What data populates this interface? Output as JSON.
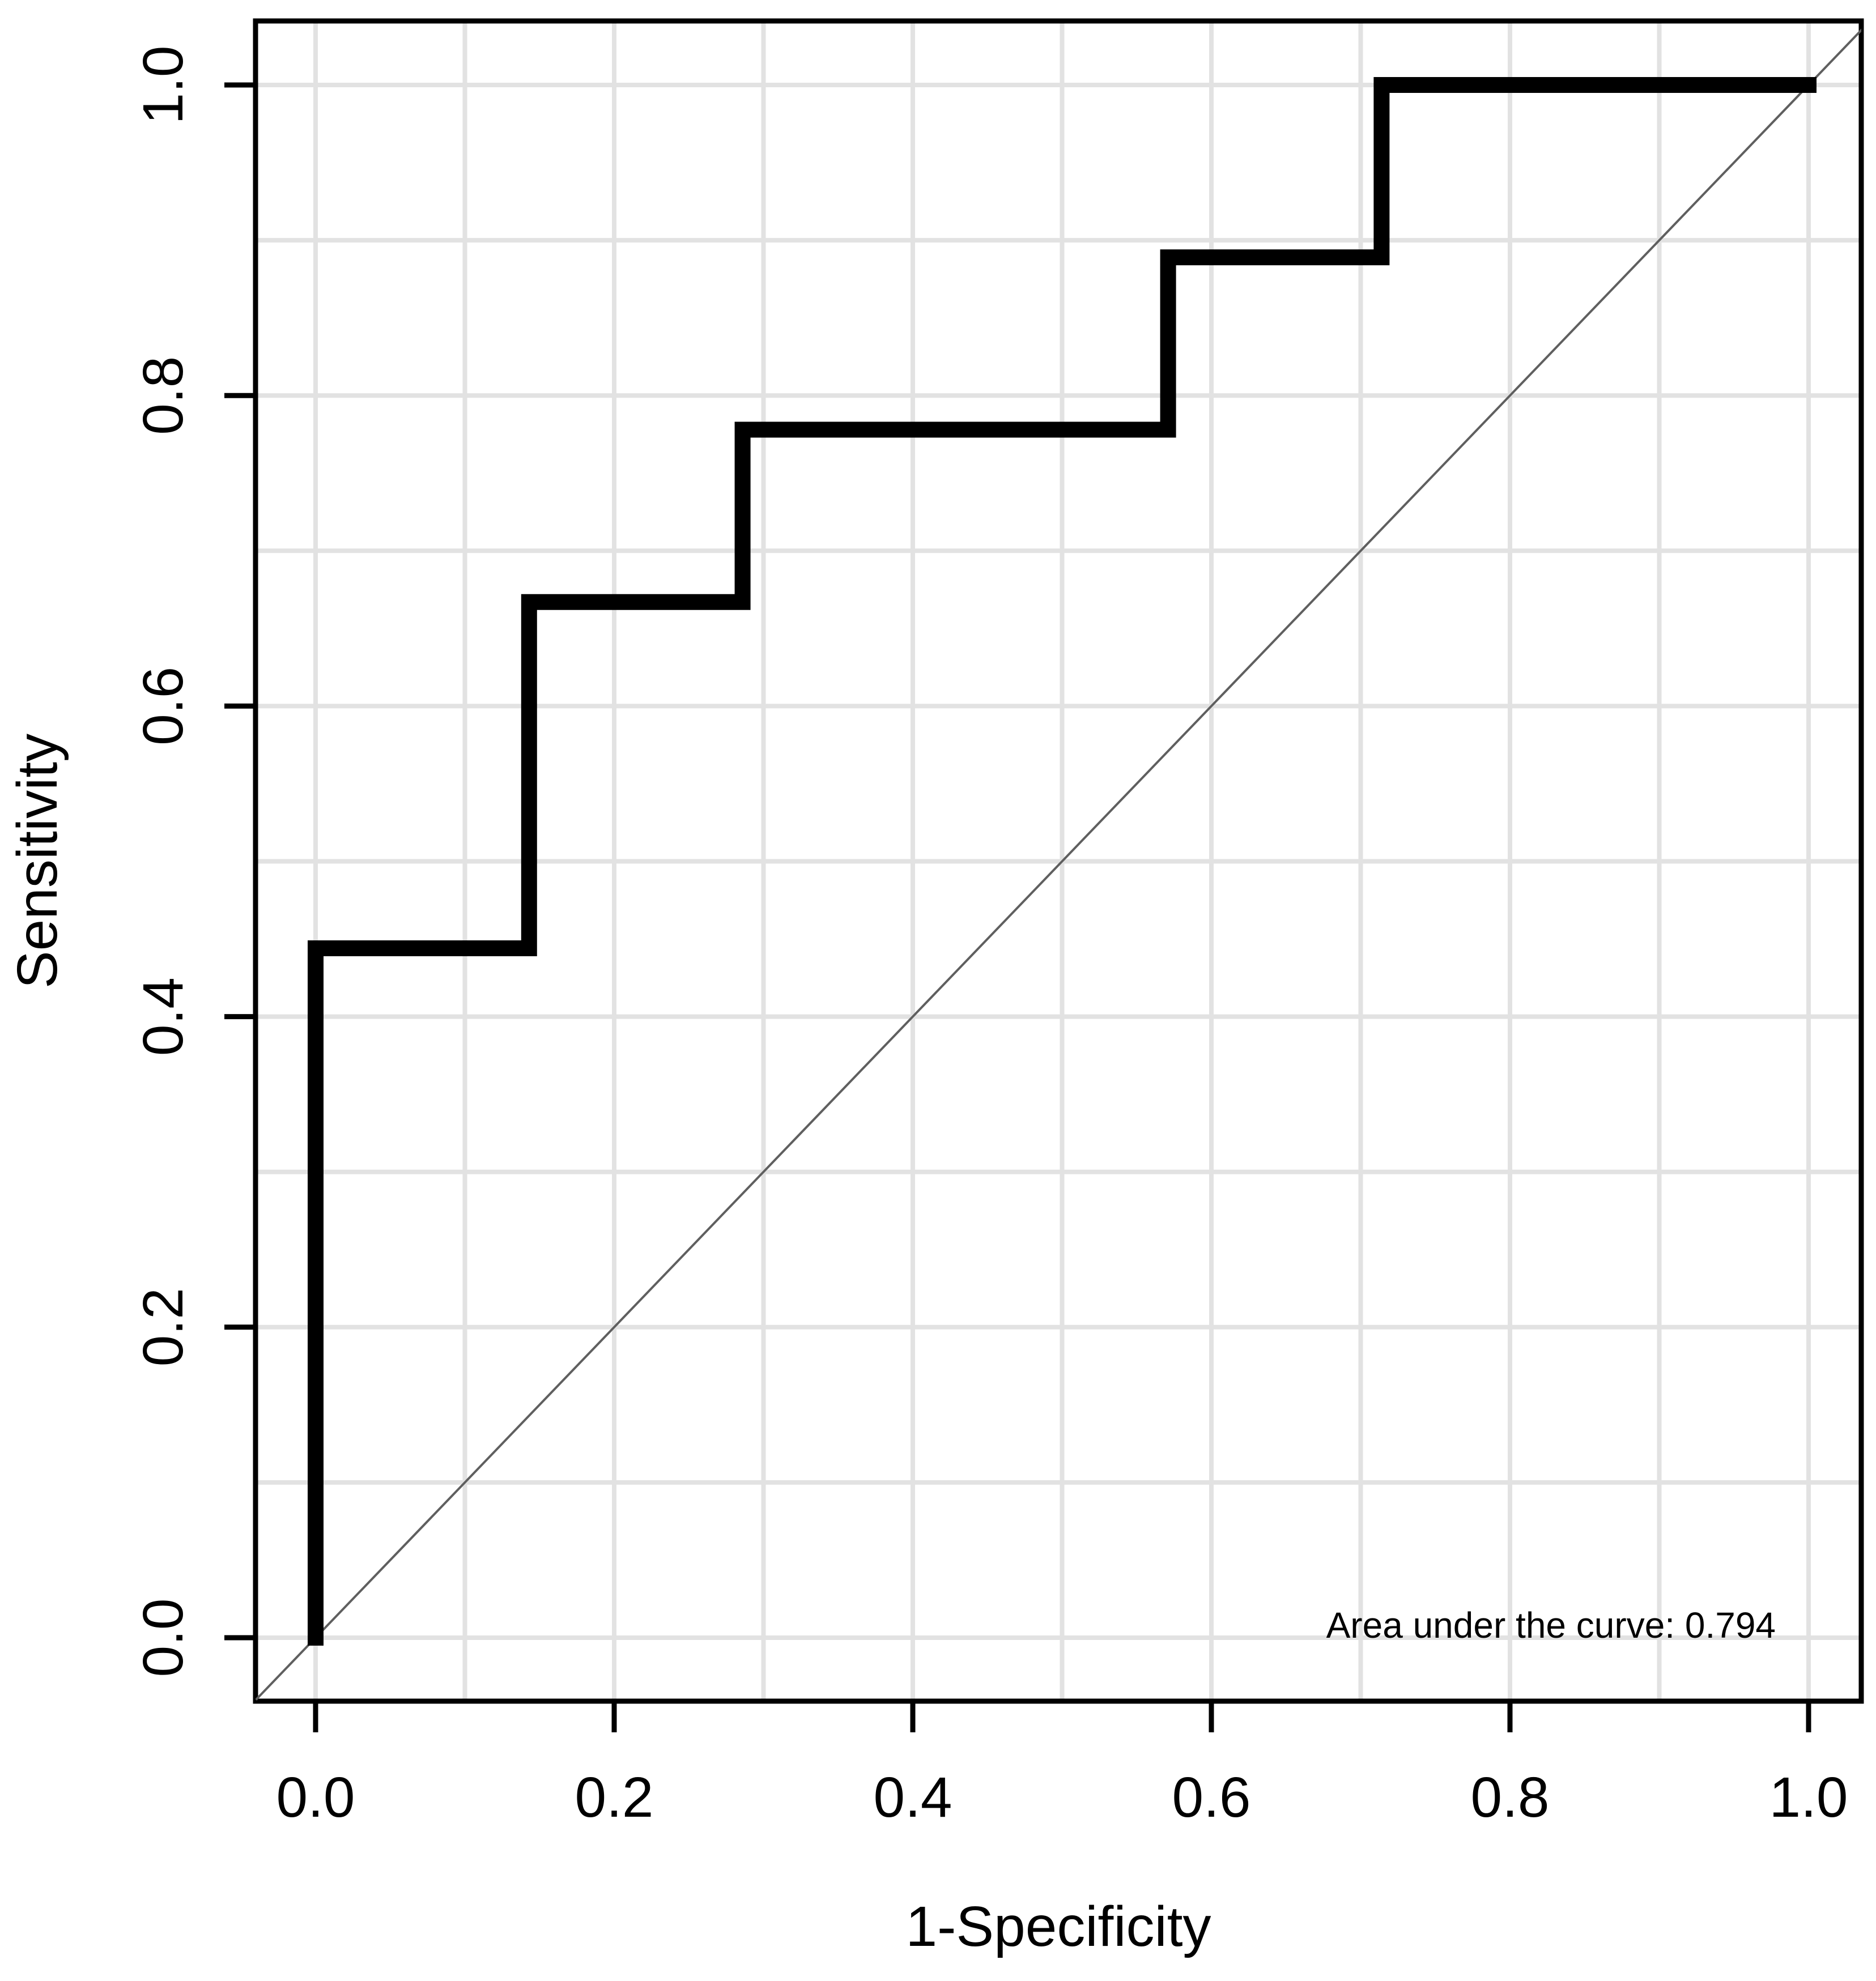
{
  "chart_data": {
    "type": "line",
    "subtype": "roc-step-curve",
    "title": "",
    "xlabel": "1-Specificity",
    "ylabel": "Sensitivity",
    "xlim": [
      -0.04,
      1.04
    ],
    "ylim": [
      -0.04,
      1.04
    ],
    "x_tick_labels": [
      "0.0",
      "0.2",
      "0.4",
      "0.6",
      "0.8",
      "1.0"
    ],
    "y_tick_labels": [
      "0.0",
      "0.2",
      "0.4",
      "0.6",
      "0.8",
      "1.0"
    ],
    "tick_step": 0.2,
    "grid": {
      "visible": true,
      "step": 0.1,
      "color": "#e2e2e2"
    },
    "legend_position": "none",
    "annotation": {
      "text": "Area under the curve: 0.794",
      "auc_value": 0.794,
      "x": 0.978,
      "y": 0.0,
      "anchor": "end"
    },
    "series": [
      {
        "name": "roc-curve",
        "color": "#000000",
        "width": 28,
        "x": [
          0,
          0,
          0.143,
          0.143,
          0.286,
          0.286,
          0.571,
          0.571,
          0.714,
          0.714,
          1.0
        ],
        "y": [
          0,
          0.444,
          0.444,
          0.667,
          0.667,
          0.778,
          0.778,
          0.889,
          0.889,
          1.0,
          1.0
        ]
      },
      {
        "name": "chance-diagonal",
        "color": "#5f5f5f",
        "width": 4,
        "x": [
          -0.04,
          1.04
        ],
        "y": [
          -0.04,
          1.04
        ]
      }
    ],
    "colors": {
      "background": "#ffffff",
      "axis": "#000000",
      "grid": "#e2e2e2",
      "curve": "#000000",
      "diagonal": "#5f5f5f",
      "text": "#000000"
    }
  }
}
